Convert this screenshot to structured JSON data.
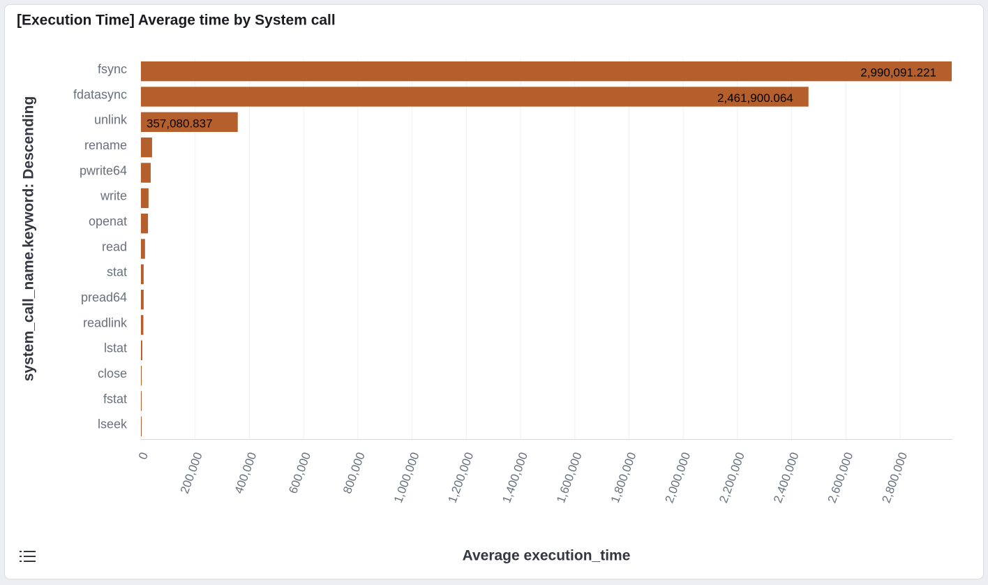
{
  "chart_data": {
    "type": "bar",
    "orientation": "horizontal",
    "title": "[Execution Time] Average time by System call",
    "x_label": "Average execution_time",
    "y_label": "system_call_name.keyword: Descending",
    "categories": [
      "fsync",
      "fdatasync",
      "unlink",
      "rename",
      "pwrite64",
      "write",
      "openat",
      "read",
      "stat",
      "pread64",
      "readlink",
      "lstat",
      "close",
      "fstat",
      "lseek"
    ],
    "values": [
      2990091.221,
      2461900.064,
      357080.837,
      41000,
      36000,
      28000,
      26000,
      15000,
      10000,
      10000,
      9000,
      5000,
      2500,
      2000,
      1500
    ],
    "value_labels": [
      "2,990,091.221",
      "2,461,900.064",
      "357,080.837",
      null,
      null,
      null,
      null,
      null,
      null,
      null,
      null,
      null,
      null,
      null,
      null
    ],
    "color": "#b5602c",
    "xlim": [
      0,
      2990091.221
    ],
    "xticks": [
      0,
      {
        "value": 200000,
        "label": "200,000"
      },
      {
        "value": 400000,
        "label": "400,000"
      },
      {
        "value": 600000,
        "label": "600,000"
      },
      {
        "value": 800000,
        "label": "800,000"
      },
      {
        "value": 1000000,
        "label": "1,000,000"
      },
      {
        "value": 1200000,
        "label": "1,200,000"
      },
      {
        "value": 1400000,
        "label": "1,400,000"
      },
      {
        "value": 1600000,
        "label": "1,600,000"
      },
      {
        "value": 1800000,
        "label": "1,800,000"
      },
      {
        "value": 2000000,
        "label": "2,000,000"
      },
      {
        "value": 2200000,
        "label": "2,200,000"
      },
      {
        "value": 2400000,
        "label": "2,400,000"
      },
      {
        "value": 2600000,
        "label": "2,600,000"
      },
      {
        "value": 2800000,
        "label": "2,800,000"
      }
    ],
    "grid": true
  }
}
